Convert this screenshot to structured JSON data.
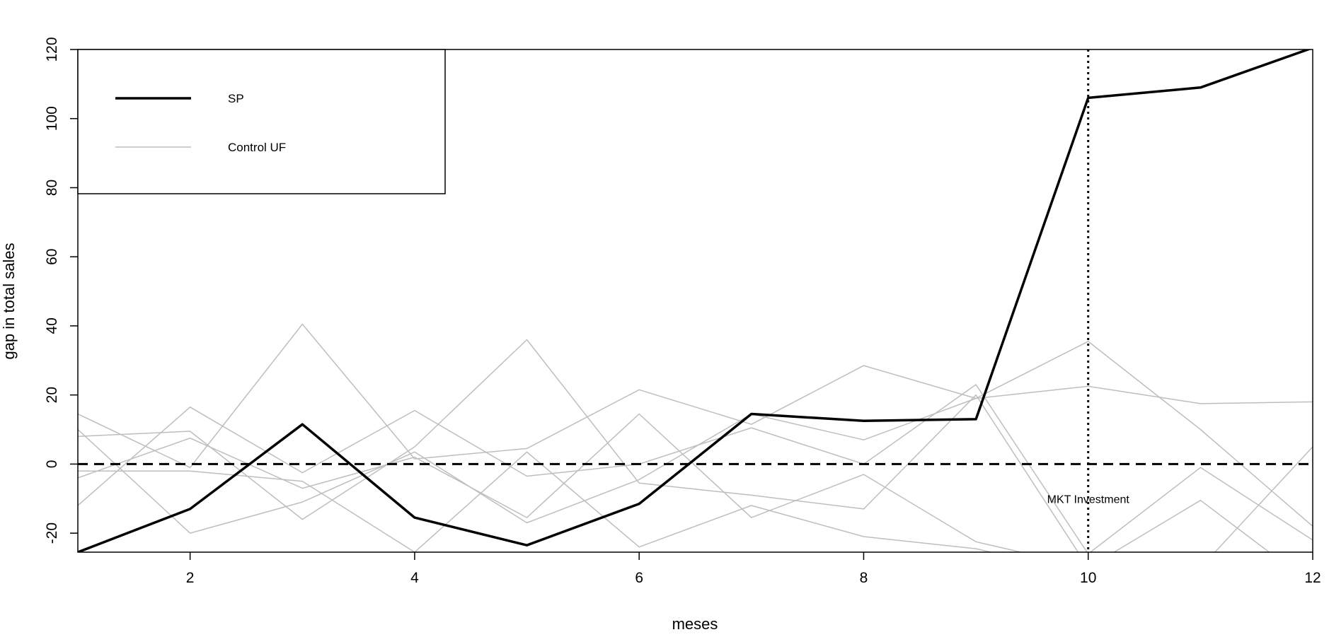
{
  "chart_data": {
    "type": "line",
    "title": "",
    "xlabel": "meses",
    "ylabel": "gap in total sales",
    "xlim": [
      1,
      12
    ],
    "ylim": [
      -25.5,
      120
    ],
    "x": [
      1,
      2,
      3,
      4,
      5,
      6,
      7,
      8,
      9,
      10,
      11,
      12
    ],
    "x_ticks": [
      2,
      4,
      6,
      8,
      10,
      12
    ],
    "y_ticks": [
      -20,
      0,
      20,
      40,
      60,
      80,
      100,
      120
    ],
    "treated": {
      "name": "SP",
      "values": [
        -25.5,
        -13,
        11.5,
        -15.5,
        -23.5,
        -11.5,
        14.5,
        12.5,
        13,
        106,
        109,
        120.5
      ]
    },
    "controls_name": "Control UF",
    "controls": [
      [
        14.5,
        -1,
        40.5,
        1.5,
        4.5,
        21.5,
        11.5,
        28.5,
        19,
        35.5,
        10,
        -18
      ],
      [
        10,
        -20,
        -11,
        3.5,
        -17,
        -4.5,
        14.5,
        7,
        19,
        22.5,
        17.5,
        18
      ],
      [
        -12,
        16.5,
        -2.5,
        15.5,
        -3.5,
        0,
        10.5,
        0,
        23,
        -26,
        -1,
        -22
      ],
      [
        -4,
        7.5,
        -7,
        2,
        -15.5,
        14.5,
        -15.5,
        -3,
        -22.5,
        -30,
        -10.5,
        -35
      ],
      [
        8,
        9.5,
        -16,
        5,
        36,
        -5.5,
        -9,
        -13,
        20,
        -30,
        -30,
        5
      ],
      [
        -2,
        -2,
        -5,
        -25.5,
        3.5,
        -24,
        -12,
        -21,
        -24.5,
        -32,
        -30,
        -40
      ]
    ],
    "reference_lines": [
      {
        "type": "horizontal",
        "value": 0,
        "style": "dashed"
      },
      {
        "type": "vertical",
        "value": 10,
        "style": "dotted"
      }
    ],
    "annotations": [
      {
        "text": "MKT Investment",
        "x": 10,
        "y": -10
      }
    ],
    "legend": {
      "placement": "top-left",
      "entries": [
        "SP",
        "Control UF"
      ]
    },
    "colors": {
      "treated": "#000000",
      "control": "#bebebe"
    },
    "grid": false
  }
}
